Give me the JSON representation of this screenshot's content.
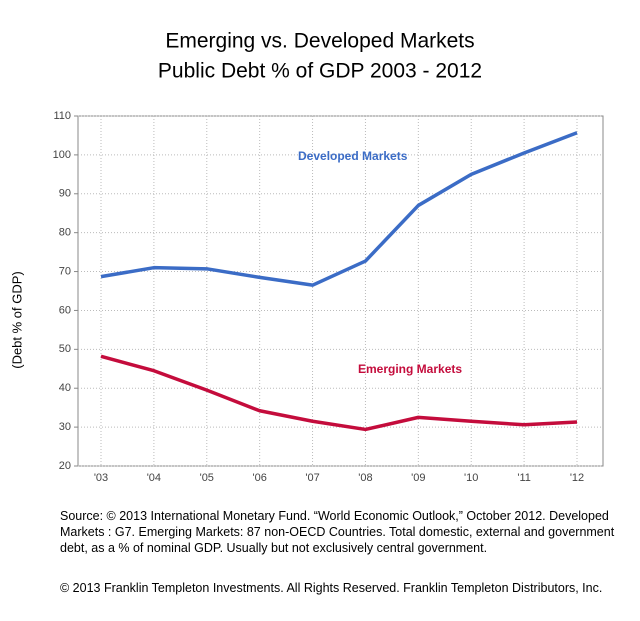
{
  "chart_data": {
    "type": "line",
    "title": "Emerging vs. Developed Markets",
    "subtitle": "Public Debt % of GDP 2003 - 2012",
    "y_label": "(Debt % of GDP)",
    "categories": [
      "'03",
      "'04",
      "'05",
      "'06",
      "'07",
      "'08",
      "'09",
      "'10",
      "'11",
      "'12"
    ],
    "series": [
      {
        "name": "Developed Markets",
        "color": "#3b6cc6",
        "values": [
          68.7,
          71,
          70.7,
          68.5,
          66.5,
          72.7,
          87,
          95,
          100.5,
          105.7
        ]
      },
      {
        "name": "Emerging Markets",
        "color": "#c40c3c",
        "values": [
          48.2,
          44.5,
          39.5,
          34.2,
          31.5,
          29.4,
          32.5,
          31.5,
          30.6,
          31.3
        ]
      }
    ],
    "ylim": [
      20,
      110
    ],
    "yticks": [
      20,
      30,
      40,
      50,
      60,
      70,
      80,
      90,
      100,
      110
    ],
    "grid": true,
    "source": "Source: © 2013 International Monetary Fund. “World Economic Outlook,” October 2012. Developed Markets : G7. Emerging Markets: 87 non-OECD Countries. Total domestic, external and government debt, as a % of nominal GDP. Usually but not exclusively central government.",
    "copyright": "© 2013 Franklin Templeton Investments. All Rights Reserved.  Franklin Templeton Distributors, Inc."
  }
}
